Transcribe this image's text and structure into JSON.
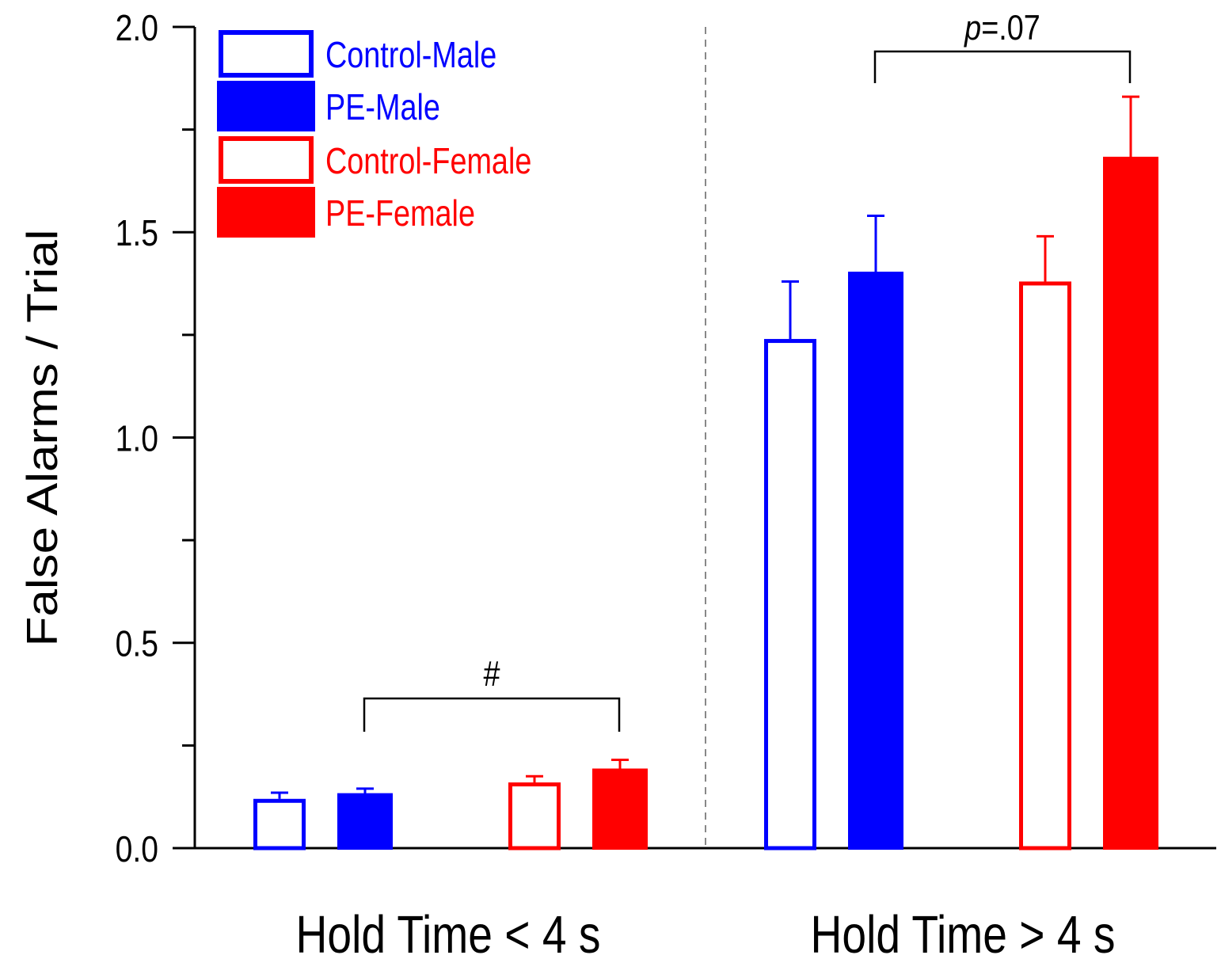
{
  "chart_data": {
    "type": "bar",
    "title": "",
    "xlabel": "",
    "ylabel": "False Alarms / Trial",
    "ylim": [
      0,
      2.0
    ],
    "yticks": [
      "0.0",
      "0.5",
      "1.0",
      "1.5",
      "2.0"
    ],
    "categories": [
      "Hold Time < 4 s",
      "Hold Time > 4 s"
    ],
    "series": [
      {
        "name": "Control-Male",
        "color": "#0000ff",
        "filled": false,
        "values": [
          0.12,
          1.24
        ],
        "errors": [
          0.015,
          0.14
        ]
      },
      {
        "name": "PE-Male",
        "color": "#0000ff",
        "filled": true,
        "values": [
          0.13,
          1.4
        ],
        "errors": [
          0.015,
          0.14
        ]
      },
      {
        "name": "Control-Female",
        "color": "#ff0000",
        "filled": false,
        "values": [
          0.16,
          1.38
        ],
        "errors": [
          0.015,
          0.11
        ]
      },
      {
        "name": "PE-Female",
        "color": "#ff0000",
        "filled": true,
        "values": [
          0.19,
          1.68
        ],
        "errors": [
          0.025,
          0.15
        ]
      }
    ],
    "annotations": [
      {
        "text": "#",
        "category": "Hold Time < 4 s",
        "between": [
          "PE-Male",
          "PE-Female"
        ]
      },
      {
        "text": "=.07",
        "italic_prefix": "p",
        "category": "Hold Time > 4 s",
        "between": [
          "PE-Male",
          "PE-Female"
        ]
      }
    ],
    "legend": "top-left",
    "separator": "dashed"
  }
}
